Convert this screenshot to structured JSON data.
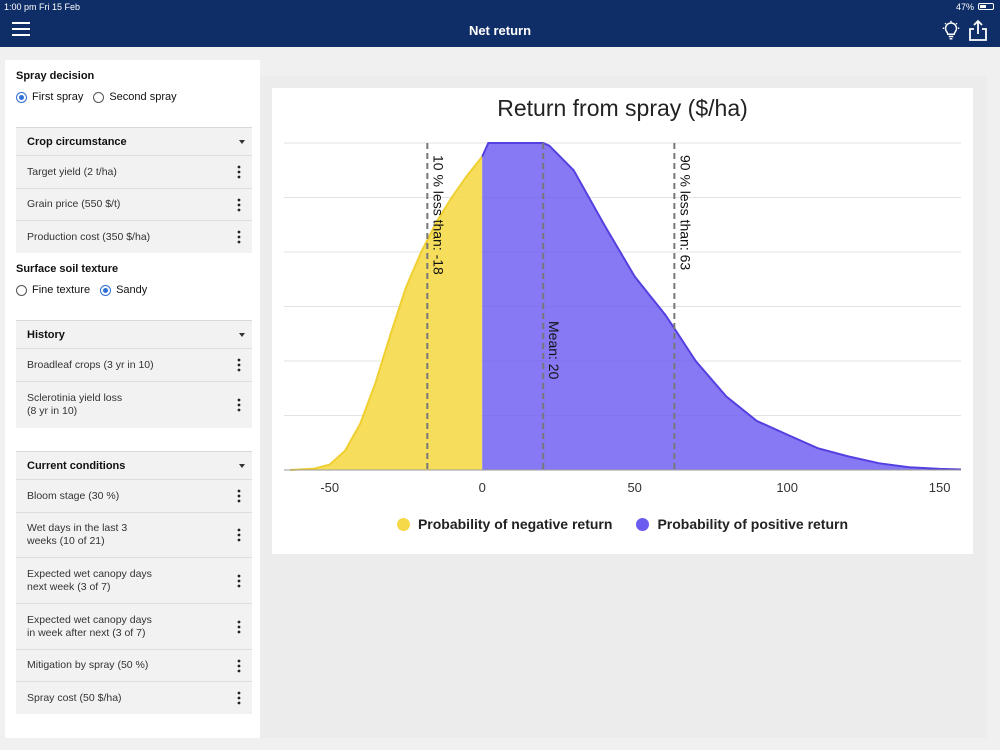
{
  "status": {
    "time": "1:00 pm   Fri 15 Feb",
    "battery": "47%"
  },
  "header": {
    "title": "Net return",
    "menu_icon": "hamburger-menu-icon",
    "tip_icon": "lightbulb-icon",
    "share_icon": "share-icon"
  },
  "sidebar": {
    "spray_decision": {
      "label": "Spray decision",
      "options": [
        "First spray",
        "Second spray"
      ],
      "selected": "First spray"
    },
    "crop": {
      "title": "Crop circumstance",
      "items": [
        "Target yield (2 t/ha)",
        "Grain price (550 $/t)",
        "Production cost (350 $/ha)"
      ]
    },
    "soil": {
      "label": "Surface soil texture",
      "options": [
        "Fine texture",
        "Sandy"
      ],
      "selected": "Sandy"
    },
    "history": {
      "title": "History",
      "items": [
        "Broadleaf crops (3 yr in 10)",
        "Sclerotinia yield loss\n(8 yr in 10)"
      ]
    },
    "conditions": {
      "title": "Current conditions",
      "items": [
        "Bloom stage (30 %)",
        "Wet days in the last 3\nweeks (10 of 21)",
        "Expected wet canopy days\nnext week (3 of 7)",
        "Expected wet canopy days\nin week after next (3 of 7)",
        "Mitigation by spray (50 %)",
        "Spray cost (50 $/ha)"
      ]
    }
  },
  "chart_data": {
    "type": "area",
    "title": "Return from spray ($/ha)",
    "xlim": [
      -65,
      157
    ],
    "ylim": [
      0,
      1.2
    ],
    "xticks": [
      -50,
      0,
      50,
      100,
      150
    ],
    "grid": true,
    "legend_position": "bottom",
    "series": [
      {
        "name": "Probability of negative return",
        "color": "#f5d94a",
        "x": [
          -63,
          -55,
          -50,
          -45,
          -40,
          -35,
          -30,
          -25,
          -20,
          -15,
          -10,
          -5,
          0
        ],
        "y": [
          0.0,
          0.005,
          0.02,
          0.07,
          0.17,
          0.32,
          0.5,
          0.67,
          0.8,
          0.91,
          1.0,
          1.08,
          1.15
        ]
      },
      {
        "name": "Probability of positive return",
        "color": "#6b5cf0",
        "x": [
          0,
          2,
          10,
          20,
          22,
          30,
          40,
          50,
          55,
          60,
          63,
          70,
          80,
          90,
          100,
          110,
          120,
          130,
          140,
          150,
          157
        ],
        "y": [
          1.15,
          1.2,
          1.2,
          1.2,
          1.19,
          1.1,
          0.9,
          0.71,
          0.64,
          0.57,
          0.52,
          0.4,
          0.27,
          0.18,
          0.13,
          0.08,
          0.05,
          0.025,
          0.01,
          0.004,
          0.002
        ]
      }
    ],
    "annotations": [
      {
        "x": -18,
        "label": "10 % less than: -18"
      },
      {
        "x": 20,
        "label": "Mean: 20"
      },
      {
        "x": 63,
        "label": "90 % less than: 63"
      }
    ]
  }
}
